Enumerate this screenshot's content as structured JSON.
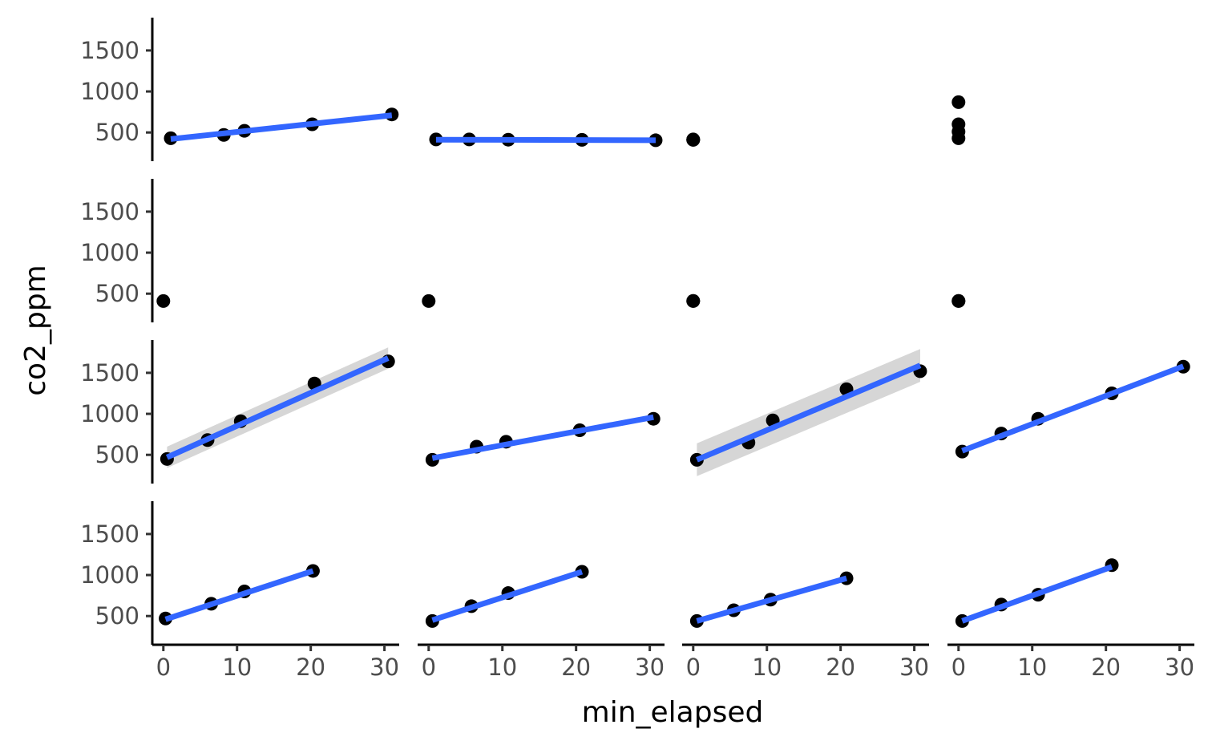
{
  "chart_data": {
    "type": "scatter",
    "layout": "facet-grid",
    "rows": 4,
    "cols": 4,
    "xlabel": "min_elapsed",
    "ylabel": "co2_ppm",
    "xlim": [
      -1.5,
      32
    ],
    "ylim": [
      150,
      1900
    ],
    "xticks": [
      0,
      10,
      20,
      30
    ],
    "yticks": [
      500,
      1000,
      1500
    ],
    "grid": false,
    "legend": "none",
    "point_color": "#000000",
    "line_color": "#3366FF",
    "ribbon_color": "#999999",
    "panels": [
      {
        "row": 1,
        "col": 1,
        "points": [
          [
            1,
            430
          ],
          [
            8.2,
            470
          ],
          [
            11,
            520
          ],
          [
            20.2,
            600
          ],
          [
            31,
            720
          ]
        ],
        "fit": [
          [
            1,
            420
          ],
          [
            31,
            710
          ]
        ],
        "band": 15
      },
      {
        "row": 1,
        "col": 2,
        "points": [
          [
            1,
            415
          ],
          [
            5.5,
            415
          ],
          [
            10.8,
            412
          ],
          [
            20.8,
            410
          ],
          [
            30.8,
            405
          ]
        ],
        "fit": [
          [
            1,
            412
          ],
          [
            30.8,
            406
          ]
        ],
        "band": 6
      },
      {
        "row": 1,
        "col": 3,
        "points": [
          [
            0,
            410
          ],
          [
            0,
            412
          ],
          [
            0,
            415
          ]
        ],
        "fit": null,
        "band": 0
      },
      {
        "row": 1,
        "col": 4,
        "points": [
          [
            0,
            430
          ],
          [
            0,
            510
          ],
          [
            0,
            600
          ],
          [
            0,
            870
          ]
        ],
        "fit": null,
        "band": 0
      },
      {
        "row": 2,
        "col": 1,
        "points": [
          [
            0,
            410
          ]
        ],
        "fit": null,
        "band": 0
      },
      {
        "row": 2,
        "col": 2,
        "points": [
          [
            0,
            410
          ]
        ],
        "fit": null,
        "band": 0
      },
      {
        "row": 2,
        "col": 3,
        "points": [
          [
            0,
            410
          ],
          [
            0,
            412
          ]
        ],
        "fit": null,
        "band": 0
      },
      {
        "row": 2,
        "col": 4,
        "points": [
          [
            0,
            410
          ],
          [
            0,
            412
          ]
        ],
        "fit": null,
        "band": 0
      },
      {
        "row": 3,
        "col": 1,
        "points": [
          [
            0.5,
            450
          ],
          [
            6,
            680
          ],
          [
            10.5,
            910
          ],
          [
            20.5,
            1370
          ],
          [
            30.5,
            1640
          ]
        ],
        "fit": [
          [
            0.5,
            470
          ],
          [
            30.5,
            1680
          ]
        ],
        "band": 130
      },
      {
        "row": 3,
        "col": 2,
        "points": [
          [
            0.5,
            440
          ],
          [
            6.5,
            600
          ],
          [
            10.5,
            660
          ],
          [
            20.5,
            800
          ],
          [
            30.5,
            940
          ]
        ],
        "fit": [
          [
            0.5,
            460
          ],
          [
            30.5,
            960
          ]
        ],
        "band": 30
      },
      {
        "row": 3,
        "col": 3,
        "points": [
          [
            0.5,
            440
          ],
          [
            7.5,
            650
          ],
          [
            10.8,
            920
          ],
          [
            20.8,
            1300
          ],
          [
            30.8,
            1520
          ]
        ],
        "fit": [
          [
            0.5,
            440
          ],
          [
            30.8,
            1590
          ]
        ],
        "band": 200
      },
      {
        "row": 3,
        "col": 4,
        "points": [
          [
            0.5,
            540
          ],
          [
            5.8,
            760
          ],
          [
            10.8,
            940
          ],
          [
            20.8,
            1250
          ],
          [
            30.5,
            1575
          ]
        ],
        "fit": [
          [
            0.5,
            550
          ],
          [
            30.5,
            1580
          ]
        ],
        "band": 20
      },
      {
        "row": 4,
        "col": 1,
        "points": [
          [
            0.3,
            470
          ],
          [
            6.5,
            650
          ],
          [
            11,
            800
          ],
          [
            20.3,
            1050
          ]
        ],
        "fit": [
          [
            0.3,
            460
          ],
          [
            20.3,
            1050
          ]
        ],
        "band": 15
      },
      {
        "row": 4,
        "col": 2,
        "points": [
          [
            0.5,
            440
          ],
          [
            5.8,
            620
          ],
          [
            10.8,
            780
          ],
          [
            20.8,
            1040
          ]
        ],
        "fit": [
          [
            0.5,
            450
          ],
          [
            20.8,
            1040
          ]
        ],
        "band": 25
      },
      {
        "row": 4,
        "col": 3,
        "points": [
          [
            0.5,
            440
          ],
          [
            5.5,
            570
          ],
          [
            10.5,
            700
          ],
          [
            20.8,
            960
          ]
        ],
        "fit": [
          [
            0.5,
            440
          ],
          [
            20.8,
            960
          ]
        ],
        "band": 15
      },
      {
        "row": 4,
        "col": 4,
        "points": [
          [
            0.5,
            440
          ],
          [
            5.8,
            640
          ],
          [
            10.8,
            760
          ],
          [
            20.8,
            1120
          ]
        ],
        "fit": [
          [
            0.5,
            440
          ],
          [
            20.8,
            1100
          ]
        ],
        "band": 35
      }
    ]
  }
}
